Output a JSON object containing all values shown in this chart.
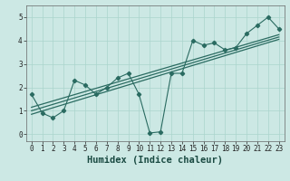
{
  "title": "",
  "xlabel": "Humidex (Indice chaleur)",
  "ylabel": "",
  "bg_color": "#cce8e4",
  "line_color": "#2a6b61",
  "xlim": [
    -0.5,
    23.5
  ],
  "ylim": [
    -0.3,
    5.5
  ],
  "xticks": [
    0,
    1,
    2,
    3,
    4,
    5,
    6,
    7,
    8,
    9,
    10,
    11,
    12,
    13,
    14,
    15,
    16,
    17,
    18,
    19,
    20,
    21,
    22,
    23
  ],
  "yticks": [
    0,
    1,
    2,
    3,
    4,
    5
  ],
  "scatter_x": [
    0,
    1,
    2,
    3,
    4,
    5,
    6,
    7,
    8,
    9,
    10,
    11,
    12,
    13,
    14,
    15,
    16,
    17,
    18,
    19,
    20,
    21,
    22,
    23
  ],
  "scatter_y": [
    1.7,
    0.9,
    0.7,
    1.0,
    2.3,
    2.1,
    1.7,
    2.0,
    2.4,
    2.6,
    1.7,
    0.05,
    0.1,
    2.6,
    2.6,
    4.0,
    3.8,
    3.9,
    3.6,
    3.7,
    4.3,
    4.65,
    5.0,
    4.5
  ],
  "reg_lines": [
    [
      [
        0,
        23
      ],
      [
        0.85,
        4.05
      ]
    ],
    [
      [
        0,
        23
      ],
      [
        1.0,
        4.15
      ]
    ],
    [
      [
        0,
        23
      ],
      [
        1.15,
        4.25
      ]
    ]
  ],
  "figsize": [
    3.2,
    2.0
  ],
  "dpi": 100,
  "grid_color": "#aad4cc",
  "tick_fontsize": 5.5,
  "label_fontsize": 7.5
}
